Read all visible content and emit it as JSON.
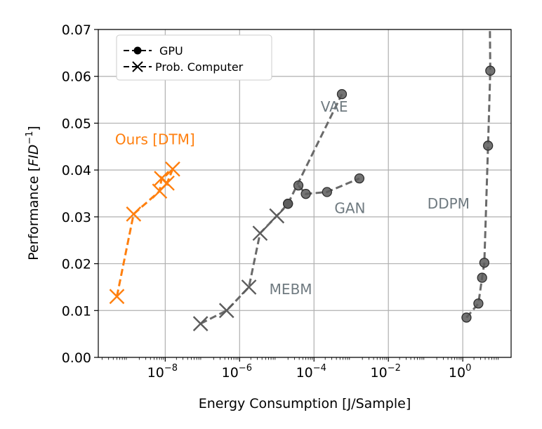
{
  "chart_data": {
    "type": "scatter",
    "xlabel": "Energy Consumption [J/Sample]",
    "ylabel_prefix": "Performance [",
    "ylabel_var": "FID",
    "ylabel_exp": "−1",
    "ylabel_suffix": "]",
    "xscale": "log",
    "xlim_log10": [
      -9.8,
      1.3
    ],
    "ylim": [
      0,
      0.07
    ],
    "grid": true,
    "x_ticks": [
      {
        "exp": -8,
        "base": "10",
        "sup": "−8"
      },
      {
        "exp": -6,
        "base": "10",
        "sup": "−6"
      },
      {
        "exp": -4,
        "base": "10",
        "sup": "−4"
      },
      {
        "exp": -2,
        "base": "10",
        "sup": "−2"
      },
      {
        "exp": 0,
        "base": "10",
        "sup": "0"
      }
    ],
    "y_ticks": [
      "0.00",
      "0.01",
      "0.02",
      "0.03",
      "0.04",
      "0.05",
      "0.06",
      "0.07"
    ],
    "legend": {
      "position": "top-left",
      "entries": [
        {
          "label": "GPU",
          "marker": "circle"
        },
        {
          "label": "Prob. Computer",
          "marker": "x"
        }
      ]
    },
    "series": [
      {
        "name": "Ours [DTM]",
        "color": "#ff7f0e",
        "line": "dashed",
        "label_at": {
          "log10x": -9.35,
          "y": 0.0455
        },
        "points": [
          {
            "log10x": -9.3,
            "y": 0.013,
            "marker": "x"
          },
          {
            "log10x": -8.85,
            "y": 0.0306,
            "marker": "x"
          },
          {
            "log10x": -8.15,
            "y": 0.0355,
            "marker": "x"
          },
          {
            "log10x": -8.1,
            "y": 0.0382,
            "marker": "x"
          },
          {
            "log10x": -7.95,
            "y": 0.0372,
            "marker": "x"
          },
          {
            "log10x": -7.8,
            "y": 0.0402,
            "marker": "x"
          }
        ]
      },
      {
        "name": "MEBM",
        "color": "#777777",
        "line": "dashed",
        "label_at": {
          "log10x": -5.2,
          "y": 0.0135
        },
        "points": [
          {
            "log10x": -7.05,
            "y": 0.0072,
            "marker": "x"
          },
          {
            "log10x": -6.35,
            "y": 0.01,
            "marker": "x"
          },
          {
            "log10x": -5.75,
            "y": 0.015,
            "marker": "x"
          },
          {
            "log10x": -5.45,
            "y": 0.0265,
            "marker": "x"
          },
          {
            "log10x": -5.0,
            "y": 0.0302,
            "marker": "x"
          },
          {
            "log10x": -4.7,
            "y": 0.0328,
            "marker": "circle"
          }
        ]
      },
      {
        "name": "VAE",
        "color": "#777777",
        "line": "dashed",
        "label_at": {
          "log10x": -3.82,
          "y": 0.0525
        },
        "points": [
          {
            "log10x": -4.7,
            "y": 0.0328,
            "marker": "circle"
          },
          {
            "log10x": -3.25,
            "y": 0.0562,
            "marker": "circle"
          }
        ]
      },
      {
        "name": "GAN",
        "color": "#777777",
        "line": "dashed",
        "label_at": {
          "log10x": -3.45,
          "y": 0.0308
        },
        "points": [
          {
            "log10x": -4.42,
            "y": 0.0367,
            "marker": "circle"
          },
          {
            "log10x": -4.22,
            "y": 0.0349,
            "marker": "circle"
          },
          {
            "log10x": -3.65,
            "y": 0.0353,
            "marker": "circle"
          },
          {
            "log10x": -2.78,
            "y": 0.0382,
            "marker": "circle"
          }
        ]
      },
      {
        "name": "DDPM",
        "color": "#777777",
        "line": "dashed",
        "label_at": {
          "log10x": -0.95,
          "y": 0.0318
        },
        "line_extends_to": {
          "log10x": 0.73,
          "y": 0.07
        },
        "points": [
          {
            "log10x": 0.1,
            "y": 0.0085,
            "marker": "circle"
          },
          {
            "log10x": 0.42,
            "y": 0.0115,
            "marker": "circle"
          },
          {
            "log10x": 0.52,
            "y": 0.017,
            "marker": "circle"
          },
          {
            "log10x": 0.58,
            "y": 0.0202,
            "marker": "circle"
          },
          {
            "log10x": 0.68,
            "y": 0.0452,
            "marker": "circle"
          },
          {
            "log10x": 0.74,
            "y": 0.0612,
            "marker": "circle"
          }
        ]
      }
    ]
  }
}
